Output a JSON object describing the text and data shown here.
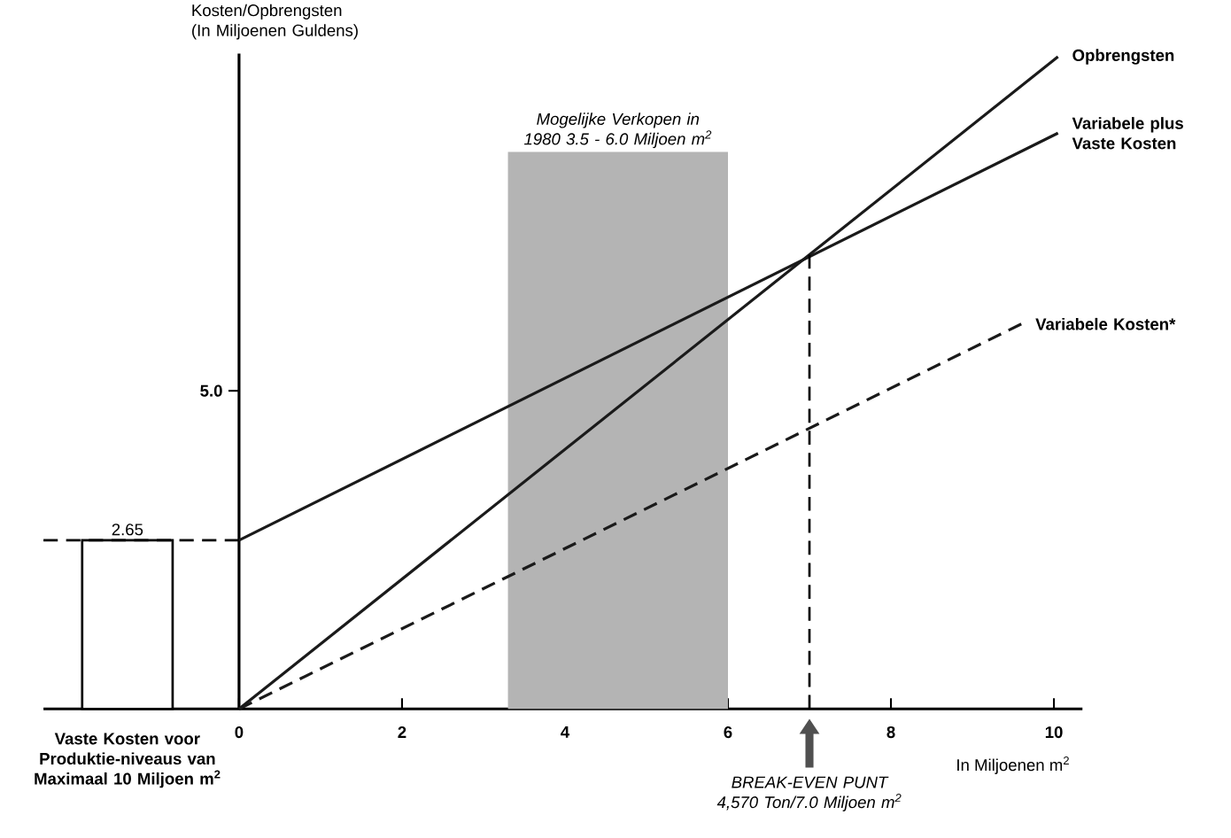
{
  "chart_data": {
    "type": "line",
    "ylabel": "Kosten/Opbrengsten (In Miljoenen Guldens)",
    "xlabel": "In Miljoenen m$^{2}$",
    "xlim": [
      -2.4,
      10.35
    ],
    "ylim": [
      0,
      10.3
    ],
    "xticks": [
      0,
      2,
      4,
      6,
      8,
      10
    ],
    "yticks": [
      {
        "value": 5,
        "label": "5.0"
      }
    ],
    "series": [
      {
        "name": "Opbrengsten",
        "color": "#1a1a1a",
        "x": [
          0,
          10.05
        ],
        "values": [
          0,
          10.25
        ]
      },
      {
        "name": "Variabele plus Vaste Kosten",
        "color": "#1a1a1a",
        "x": [
          0,
          10.05
        ],
        "values": [
          2.65,
          9.05
        ]
      },
      {
        "name": "Variabele Kosten*",
        "color": "#1a1a1a",
        "line_style": "dashed",
        "x": [
          0,
          9.6
        ],
        "values": [
          0,
          6.05
        ]
      },
      {
        "type": "bar",
        "color": "#ffffff",
        "x": [
          -1.37
        ],
        "values": [
          2.65
        ],
        "value_labels": [
          "2.65"
        ]
      }
    ],
    "bands": [
      {
        "axis": "x",
        "from": 3.3,
        "to": 6.0,
        "label": "Mogelijke Verkopen in 1980 3.5 - 6.0 Miljoen m$^{2}$",
        "color": "#b4b4b4"
      }
    ],
    "ref_lines": [
      {
        "axis": "x",
        "value": 7,
        "line_style": "dashed"
      },
      {
        "axis": "y",
        "value": 2.65,
        "line_style": "dashed"
      }
    ],
    "annotations": [
      {
        "text": "Vaste Kosten voor Produktie-niveaus van Maximaal 10 Miljoen m$^{2}$",
        "x": -1.37,
        "y": 0
      },
      "BREAK-EVEN PUNT 4,570 Ton/7.0 Miljoen m$^{2}$"
    ]
  }
}
